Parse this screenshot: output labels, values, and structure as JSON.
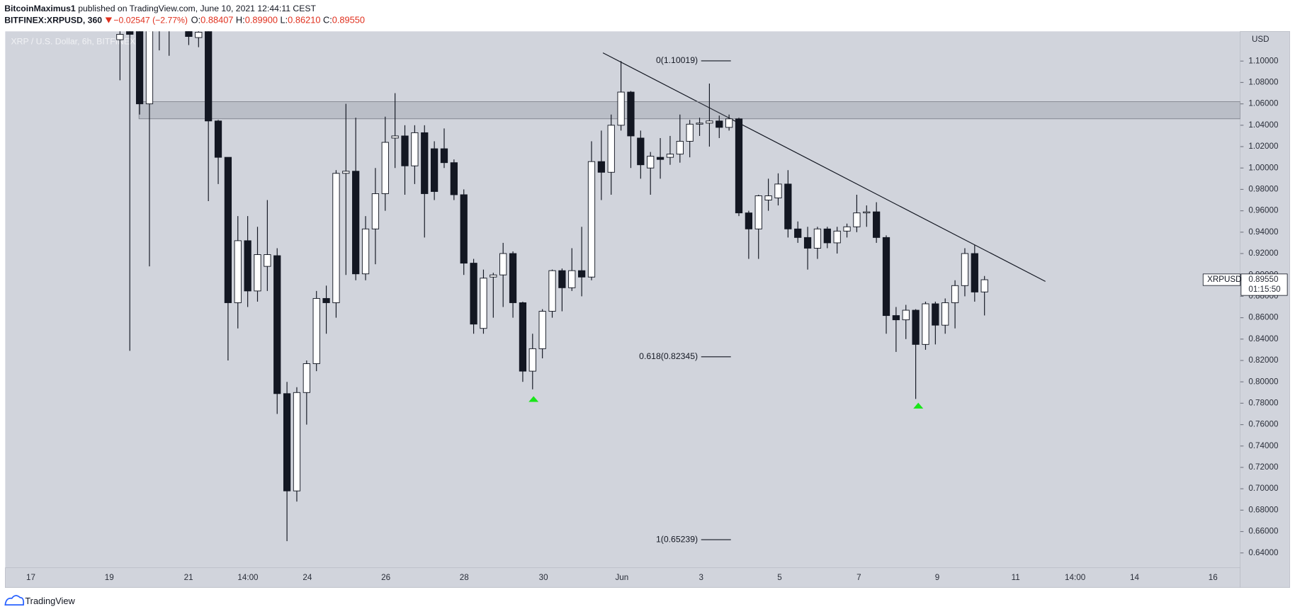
{
  "header": {
    "author": "BitcoinMaximus1",
    "published": "published on TradingView.com, June 10, 2021 12:44:11 CEST",
    "symbol": "BITFINEX:XRPUSD, 360",
    "change": "−0.02547 (−2.77%)",
    "ohlc": [
      {
        "key": "O:",
        "value": "0.88407"
      },
      {
        "key": "H:",
        "value": "0.89900"
      },
      {
        "key": "L:",
        "value": "0.86210"
      },
      {
        "key": "C:",
        "value": "0.89550"
      }
    ]
  },
  "chart_data": {
    "type": "candlestick",
    "title": "XRP / U.S. Dollar, 6h, BITFINEX",
    "open": [
      1.12,
      1.13,
      1.135,
      1.06,
      1.13,
      1.14,
      1.15,
      1.128,
      1.122,
      1.135,
      1.044,
      1.01,
      0.874,
      0.932,
      0.885,
      0.908,
      0.918,
      0.789,
      0.698,
      0.79,
      0.817,
      0.878,
      0.874,
      0.995,
      0.997,
      0.901,
      0.943,
      0.976,
      1.028,
      1.03,
      1.002,
      1.033,
      1.018,
      1.018,
      1.005,
      0.975,
      0.911,
      0.85,
      0.898,
      0.9,
      0.92,
      0.874,
      0.81,
      0.831,
      0.866,
      0.904,
      0.888,
      0.904,
      0.898,
      1.006,
      0.996,
      1.04,
      1.071,
      1.028,
      1.0,
      1.01,
      1.01,
      1.013,
      1.025,
      1.041,
      1.042,
      1.044,
      1.038,
      1.046,
      0.958,
      0.943,
      0.97,
      0.972,
      0.985,
      0.943,
      0.935,
      0.925,
      0.943,
      0.93,
      0.941,
      0.945,
      0.958,
      0.959,
      0.935,
      0.862,
      0.858,
      0.867,
      0.835,
      0.873,
      0.853,
      0.874,
      0.89,
      0.92,
      0.88407
    ],
    "high": [
      1.13,
      1.14,
      1.14,
      1.14,
      1.15,
      1.15,
      1.16,
      1.135,
      1.135,
      1.14,
      1.045,
      1.01,
      0.955,
      0.955,
      0.945,
      0.97,
      0.925,
      0.8,
      0.795,
      0.82,
      0.885,
      0.89,
      0.998,
      1.06,
      1.047,
      0.955,
      1.0,
      1.048,
      1.07,
      1.04,
      1.04,
      1.04,
      1.025,
      1.037,
      1.008,
      0.98,
      0.915,
      0.905,
      0.902,
      0.93,
      0.922,
      0.875,
      0.845,
      0.868,
      0.905,
      0.906,
      0.925,
      0.945,
      1.025,
      1.035,
      1.05,
      1.1,
      1.072,
      1.035,
      1.015,
      1.028,
      1.03,
      1.05,
      1.045,
      1.047,
      1.079,
      1.049,
      1.05,
      1.047,
      0.96,
      0.975,
      0.99,
      0.995,
      0.998,
      0.95,
      0.945,
      0.945,
      0.945,
      0.945,
      0.948,
      0.975,
      0.965,
      0.968,
      0.937,
      0.87,
      0.872,
      0.868,
      0.875,
      0.875,
      0.878,
      0.895,
      0.925,
      0.928,
      0.899
    ],
    "low": [
      1.082,
      0.829,
      1.05,
      0.908,
      1.11,
      1.105,
      1.13,
      1.115,
      1.113,
      0.969,
      0.985,
      0.82,
      0.85,
      0.87,
      0.875,
      0.885,
      0.77,
      0.651,
      0.688,
      0.76,
      0.81,
      0.845,
      0.86,
      0.9,
      0.895,
      0.895,
      0.91,
      0.96,
      1.0,
      0.975,
      0.985,
      0.935,
      0.97,
      1.0,
      0.97,
      0.9,
      0.845,
      0.845,
      0.86,
      0.87,
      0.86,
      0.8,
      0.793,
      0.822,
      0.86,
      0.866,
      0.885,
      0.88,
      0.895,
      0.97,
      0.975,
      1.035,
      1.0,
      0.99,
      0.975,
      0.99,
      1.003,
      1.005,
      1.01,
      1.03,
      1.02,
      1.028,
      1.035,
      0.955,
      0.915,
      0.915,
      0.96,
      0.965,
      0.935,
      0.93,
      0.905,
      0.915,
      0.925,
      0.92,
      0.935,
      0.94,
      0.945,
      0.93,
      0.845,
      0.828,
      0.84,
      0.784,
      0.83,
      0.835,
      0.845,
      0.85,
      0.88,
      0.875,
      0.8621
    ],
    "close": [
      1.125,
      1.125,
      1.06,
      1.13,
      1.14,
      1.135,
      1.14,
      1.123,
      1.127,
      1.044,
      1.01,
      0.874,
      0.932,
      0.885,
      0.919,
      0.919,
      0.789,
      0.698,
      0.79,
      0.817,
      0.878,
      0.874,
      0.995,
      0.997,
      0.901,
      0.943,
      0.976,
      1.024,
      1.03,
      1.002,
      1.033,
      0.976,
      0.978,
      1.005,
      0.975,
      0.911,
      0.854,
      0.897,
      0.9,
      0.92,
      0.874,
      0.81,
      0.831,
      0.866,
      0.904,
      0.888,
      0.904,
      0.898,
      1.006,
      0.996,
      1.04,
      1.071,
      1.03,
      1.003,
      1.011,
      1.008,
      1.013,
      1.025,
      1.041,
      1.042,
      1.044,
      1.038,
      1.046,
      0.958,
      0.943,
      0.974,
      0.974,
      0.985,
      0.943,
      0.935,
      0.925,
      0.943,
      0.93,
      0.941,
      0.945,
      0.958,
      0.959,
      0.935,
      0.862,
      0.858,
      0.867,
      0.835,
      0.873,
      0.853,
      0.874,
      0.89,
      0.92,
      0.884,
      0.8955
    ],
    "ylim": [
      0.6261,
      1.1278
    ],
    "yticks": [
      {
        "value": 0.64,
        "label": "0.64000"
      },
      {
        "value": 0.66,
        "label": "0.66000"
      },
      {
        "value": 0.68,
        "label": "0.68000"
      },
      {
        "value": 0.7,
        "label": "0.70000"
      },
      {
        "value": 0.72,
        "label": "0.72000"
      },
      {
        "value": 0.74,
        "label": "0.74000"
      },
      {
        "value": 0.76,
        "label": "0.76000"
      },
      {
        "value": 0.78,
        "label": "0.78000"
      },
      {
        "value": 0.8,
        "label": "0.80000"
      },
      {
        "value": 0.82,
        "label": "0.82000"
      },
      {
        "value": 0.84,
        "label": "0.84000"
      },
      {
        "value": 0.86,
        "label": "0.86000"
      },
      {
        "value": 0.88,
        "label": "0.88000"
      },
      {
        "value": 0.9,
        "label": "0.90000"
      },
      {
        "value": 0.92,
        "label": "0.92000"
      },
      {
        "value": 0.94,
        "label": "0.94000"
      },
      {
        "value": 0.96,
        "label": "0.96000"
      },
      {
        "value": 0.98,
        "label": "0.98000"
      },
      {
        "value": 1.0,
        "label": "1.00000"
      },
      {
        "value": 1.02,
        "label": "1.02000"
      },
      {
        "value": 1.04,
        "label": "1.04000"
      },
      {
        "value": 1.06,
        "label": "1.06000"
      },
      {
        "value": 1.08,
        "label": "1.08000"
      },
      {
        "value": 1.1,
        "label": "1.10000"
      }
    ],
    "y_unit": "USD",
    "x_labels": [
      "17",
      "19",
      "21",
      "14:00",
      "24",
      "26",
      "28",
      "30",
      "Jun",
      "3",
      "5",
      "7",
      "9",
      "11",
      "14:00",
      "14",
      "16"
    ],
    "resistance_zone": [
      1.046,
      1.062
    ],
    "fib_levels": [
      {
        "label": "0(1.10019)",
        "value": 1.10019
      },
      {
        "label": "0.618(0.82345)",
        "value": 0.82345
      },
      {
        "label": "1(0.65239)",
        "value": 0.65239
      }
    ],
    "last_price": {
      "symbol": "XRPUSD",
      "value": 0.8955,
      "label": "0.89550",
      "countdown": "01:15:50"
    }
  },
  "footer": {
    "brand": "TradingView"
  }
}
